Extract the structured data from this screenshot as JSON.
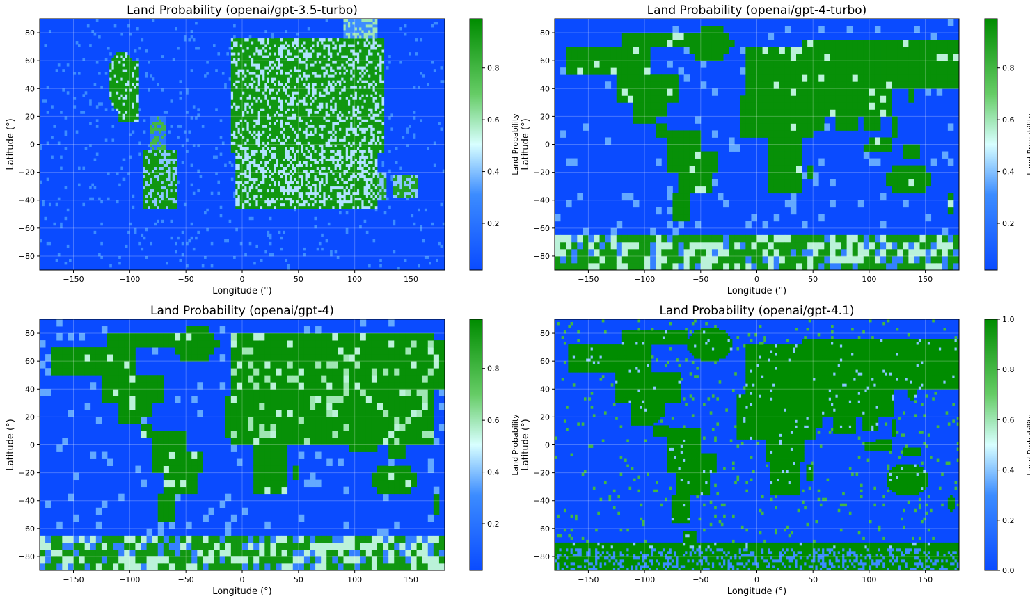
{
  "figure": {
    "colors": {
      "water": "#0a4bff",
      "mid": "#d8ffff",
      "land": "#008c00"
    }
  },
  "chart_data": [
    {
      "type": "heatmap",
      "title": "Land Probability (openai/gpt-3.5-turbo)",
      "xlabel": "Longitude (°)",
      "ylabel": "Latitude (°)",
      "xlim": [
        -180,
        180
      ],
      "ylim": [
        -90,
        90
      ],
      "xticks": [
        -150,
        -100,
        -50,
        0,
        50,
        100,
        150
      ],
      "yticks": [
        -80,
        -60,
        -40,
        -20,
        0,
        20,
        40,
        60,
        80
      ],
      "grid": true,
      "resolution_deg": 2,
      "style": "noisy",
      "colorbar": {
        "label": "Land Probability",
        "range": [
          0.02,
          0.99
        ],
        "ticks": [
          0.2,
          0.4,
          0.6,
          0.8
        ]
      }
    },
    {
      "type": "heatmap",
      "title": "Land Probability (openai/gpt-4-turbo)",
      "xlabel": "Longitude (°)",
      "ylabel": "Latitude (°)",
      "xlim": [
        -180,
        180
      ],
      "ylim": [
        -90,
        90
      ],
      "xticks": [
        -150,
        -100,
        -50,
        0,
        50,
        100,
        150
      ],
      "yticks": [
        -80,
        -60,
        -40,
        -20,
        0,
        20,
        40,
        60,
        80
      ],
      "grid": true,
      "resolution_deg": 5,
      "style": "blocky",
      "colorbar": {
        "label": "Land Probability",
        "range": [
          0.02,
          0.99
        ],
        "ticks": [
          0.2,
          0.4,
          0.6,
          0.8
        ]
      }
    },
    {
      "type": "heatmap",
      "title": "Land Probability (openai/gpt-4)",
      "xlabel": "Longitude (°)",
      "ylabel": "Latitude (°)",
      "xlim": [
        -180,
        180
      ],
      "ylim": [
        -90,
        90
      ],
      "xticks": [
        -150,
        -100,
        -50,
        0,
        50,
        100,
        150
      ],
      "yticks": [
        -80,
        -60,
        -40,
        -20,
        0,
        20,
        40,
        60,
        80
      ],
      "grid": true,
      "resolution_deg": 5,
      "style": "blocky",
      "colorbar": {
        "label": "Land Probability",
        "range": [
          0.02,
          0.99
        ],
        "ticks": [
          0.2,
          0.4,
          0.6,
          0.8
        ]
      }
    },
    {
      "type": "heatmap",
      "title": "Land Probability (openai/gpt-4.1)",
      "xlabel": "Longitude (°)",
      "ylabel": "Latitude (°)",
      "xlim": [
        -180,
        180
      ],
      "ylim": [
        -90,
        90
      ],
      "xticks": [
        -150,
        -100,
        -50,
        0,
        50,
        100,
        150
      ],
      "yticks": [
        -80,
        -60,
        -40,
        -20,
        0,
        20,
        40,
        60,
        80
      ],
      "grid": true,
      "resolution_deg": 2,
      "style": "detailed",
      "colorbar": {
        "label": "Land Probability",
        "range": [
          0,
          1
        ],
        "ticks": [
          0.0,
          0.2,
          0.4,
          0.6,
          0.8,
          1.0
        ]
      }
    }
  ]
}
